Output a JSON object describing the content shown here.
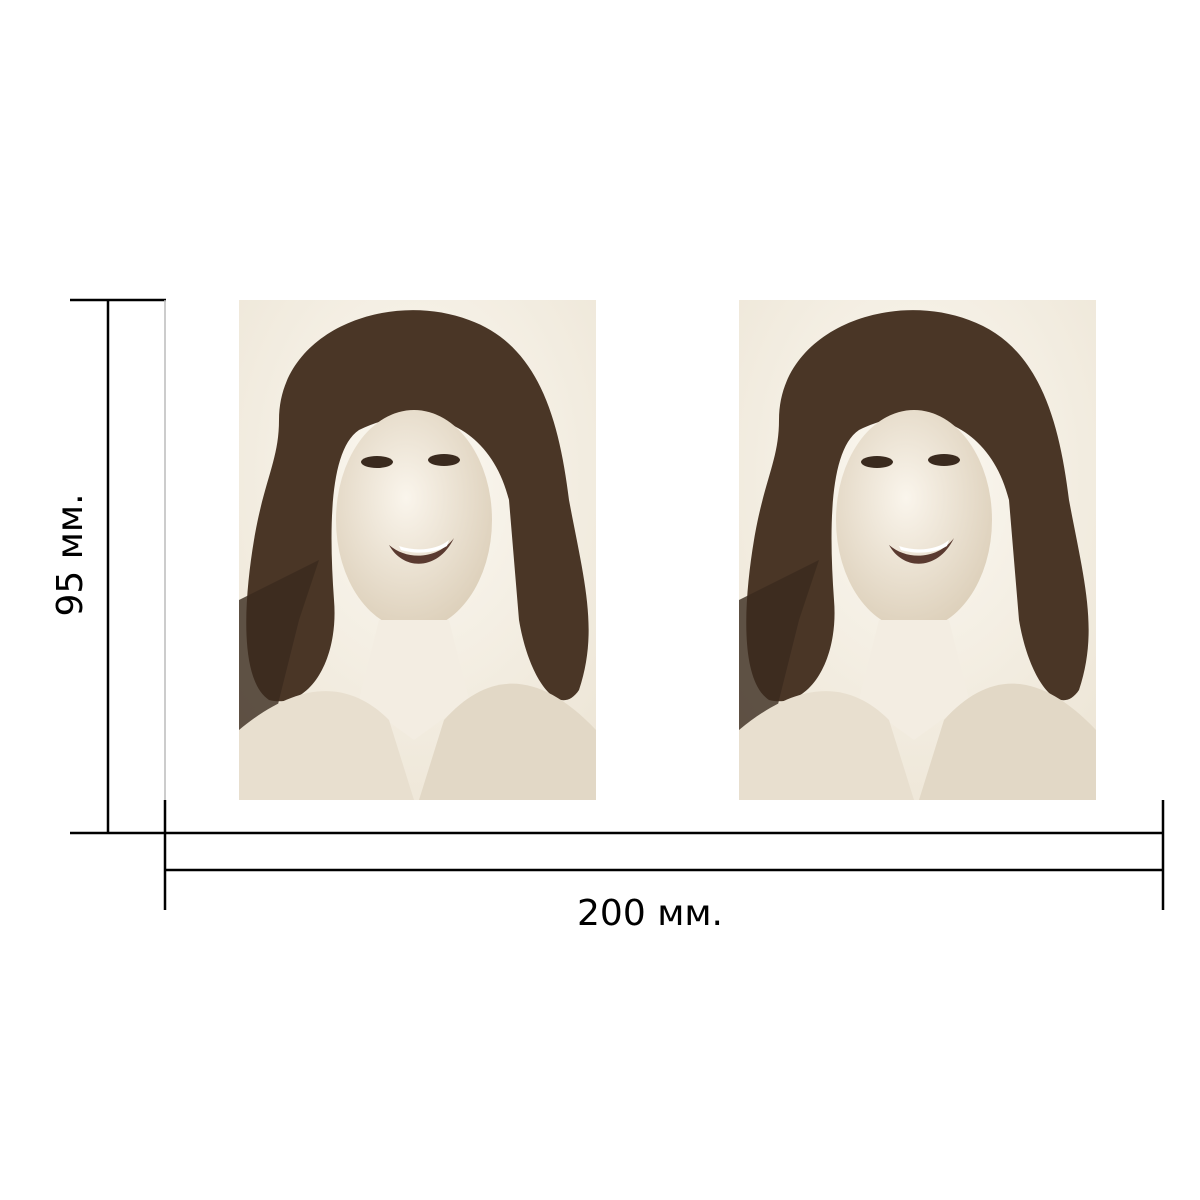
{
  "labels": {
    "height": "95 мм.",
    "width": "200 мм."
  }
}
